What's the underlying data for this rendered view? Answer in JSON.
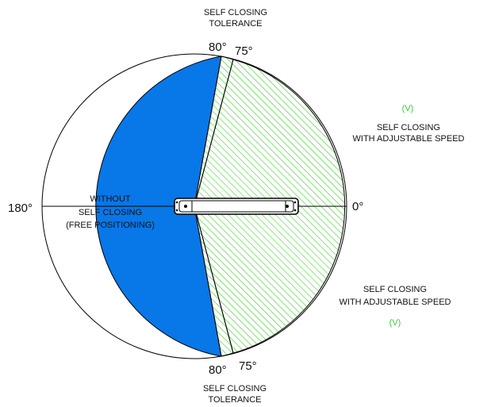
{
  "labels": {
    "tolerance_top": [
      "SELF CLOSING",
      "TOLERANCE"
    ],
    "tolerance_bottom": [
      "SELF CLOSING",
      "TOLERANCE"
    ],
    "adjustable_top": [
      "SELF CLOSING",
      "WITH ADJUSTABLE SPEED"
    ],
    "adjustable_bottom": [
      "SELF CLOSING",
      "WITH ADJUSTABLE SPEED"
    ],
    "without_closing": [
      "WITHOUT",
      "SELF CLOSING",
      "(FREE POSITIONING)"
    ],
    "v_top": "(V)",
    "v_bottom": "(V)",
    "deg_0": "0°",
    "deg_180": "180°",
    "deg_80_top": "80°",
    "deg_75_top": "75°",
    "deg_80_bottom": "80°",
    "deg_75_bottom": "75°"
  },
  "colors": {
    "free_zone": "#0877e8",
    "adjustable_hatch": "#2ecc1a",
    "v_text": "#3bcc3b",
    "outline": "#000000"
  }
}
